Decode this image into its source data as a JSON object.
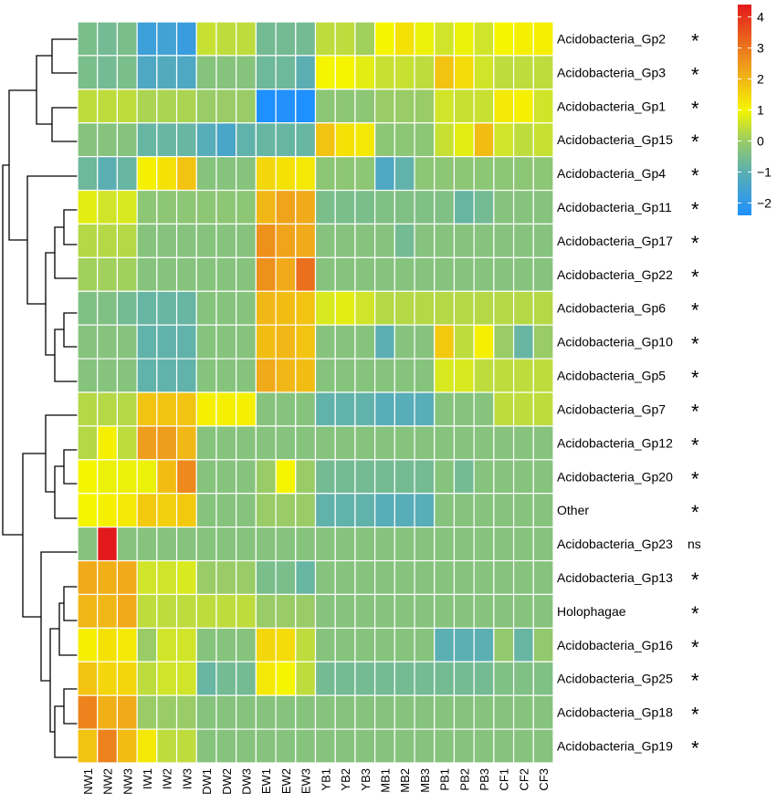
{
  "chart_data": {
    "type": "heatmap",
    "title": "",
    "xlabel": "",
    "ylabel": "",
    "columns": [
      "NW1",
      "NW2",
      "NW3",
      "IW1",
      "IW2",
      "IW3",
      "DW1",
      "DW2",
      "DW3",
      "EW1",
      "EW2",
      "EW3",
      "YB1",
      "YB2",
      "YB3",
      "MB1",
      "MB2",
      "MB3",
      "PB1",
      "PB2",
      "PB3",
      "CF1",
      "CF2",
      "CF3"
    ],
    "rows": [
      {
        "name": "Acidobacteria_Gp2",
        "sig": "*",
        "values": [
          -0.5,
          -0.6,
          -0.5,
          -1.7,
          -1.6,
          -1.8,
          0.5,
          0.4,
          0.4,
          -0.6,
          -0.6,
          -0.6,
          0.4,
          0.4,
          0.1,
          1.0,
          1.3,
          0.9,
          0.6,
          0.9,
          0.6,
          1.0,
          1.1,
          1.1
        ]
      },
      {
        "name": "Acidobacteria_Gp3",
        "sig": "*",
        "values": [
          -0.5,
          -0.6,
          -0.5,
          -1.3,
          -1.2,
          -1.3,
          -0.3,
          -0.3,
          -0.3,
          -0.7,
          -0.7,
          -1.0,
          1.0,
          1.0,
          0.8,
          0.5,
          0.5,
          0.4,
          1.8,
          1.4,
          0.6,
          0.4,
          0.4,
          0.4
        ]
      },
      {
        "name": "Acidobacteria_Gp1",
        "sig": "*",
        "values": [
          0.4,
          0.4,
          0.4,
          0.2,
          0.2,
          0.2,
          0.0,
          0.0,
          0.0,
          -2.4,
          -2.3,
          -2.4,
          -0.2,
          -0.2,
          -0.2,
          0.0,
          0.0,
          0.0,
          0.6,
          0.5,
          0.5,
          1.2,
          1.1,
          0.6
        ]
      },
      {
        "name": "Acidobacteria_Gp15",
        "sig": "*",
        "values": [
          -0.3,
          -0.3,
          -0.3,
          -0.8,
          -0.8,
          -0.8,
          -1.1,
          -1.4,
          -0.9,
          -0.8,
          -0.8,
          -0.8,
          1.8,
          1.3,
          1.2,
          -0.2,
          -0.2,
          -0.2,
          0.5,
          0.8,
          1.9,
          0.6,
          0.4,
          0.5
        ]
      },
      {
        "name": "Acidobacteria_Gp4",
        "sig": "*",
        "values": [
          -0.7,
          -1.0,
          -0.8,
          1.1,
          1.3,
          1.8,
          -0.3,
          -0.3,
          -0.3,
          1.5,
          1.3,
          1.2,
          -0.2,
          -0.2,
          -0.2,
          -1.3,
          -0.9,
          -0.2,
          -0.2,
          -0.2,
          -0.2,
          -0.2,
          -0.2,
          -0.2
        ]
      },
      {
        "name": "Acidobacteria_Gp11",
        "sig": "*",
        "values": [
          0.8,
          0.6,
          0.7,
          -0.2,
          -0.2,
          -0.2,
          -0.2,
          -0.2,
          -0.2,
          2.0,
          2.3,
          2.2,
          -0.5,
          -0.5,
          -0.5,
          -0.4,
          -0.4,
          -0.4,
          -0.4,
          -0.8,
          -0.6,
          -0.3,
          -0.3,
          -0.3
        ]
      },
      {
        "name": "Acidobacteria_Gp17",
        "sig": "*",
        "values": [
          0.3,
          0.3,
          0.3,
          -0.3,
          -0.3,
          -0.3,
          -0.3,
          -0.3,
          -0.3,
          2.6,
          2.3,
          2.2,
          -0.3,
          -0.3,
          -0.3,
          -0.3,
          -0.6,
          -0.3,
          -0.3,
          -0.3,
          -0.3,
          -0.3,
          -0.3,
          -0.3
        ]
      },
      {
        "name": "Acidobacteria_Gp22",
        "sig": "*",
        "values": [
          0.1,
          0.1,
          0.1,
          -0.3,
          -0.3,
          -0.3,
          -0.3,
          -0.3,
          -0.3,
          2.6,
          2.2,
          3.1,
          -0.3,
          -0.3,
          -0.3,
          -0.3,
          -0.3,
          -0.3,
          -0.3,
          -0.3,
          -0.3,
          -0.3,
          -0.3,
          -0.3
        ]
      },
      {
        "name": "Acidobacteria_Gp6",
        "sig": "*",
        "values": [
          -0.4,
          -0.4,
          -0.6,
          -0.8,
          -0.8,
          -0.8,
          -0.3,
          -0.3,
          -0.3,
          2.0,
          1.9,
          1.8,
          0.7,
          0.8,
          0.6,
          0.3,
          0.3,
          0.3,
          0.3,
          0.3,
          0.3,
          0.3,
          0.3,
          0.3
        ]
      },
      {
        "name": "Acidobacteria_Gp10",
        "sig": "*",
        "values": [
          -0.3,
          -0.3,
          -0.3,
          -0.9,
          -0.9,
          -0.9,
          -0.3,
          -0.3,
          -0.3,
          1.9,
          2.0,
          1.8,
          -0.3,
          -0.3,
          -0.3,
          -1.0,
          -0.3,
          -0.3,
          1.7,
          0.4,
          1.1,
          0.0,
          -0.8,
          0.0
        ]
      },
      {
        "name": "Acidobacteria_Gp5",
        "sig": "*",
        "values": [
          -0.3,
          -0.3,
          -0.3,
          -0.9,
          -0.9,
          -0.9,
          -0.3,
          -0.3,
          -0.3,
          2.2,
          2.0,
          1.9,
          -0.3,
          -0.3,
          -0.3,
          -0.3,
          -0.3,
          -0.3,
          0.7,
          0.7,
          0.4,
          0.4,
          0.4,
          0.4
        ]
      },
      {
        "name": "Acidobacteria_Gp7",
        "sig": "*",
        "values": [
          0.3,
          0.3,
          0.3,
          1.8,
          1.8,
          1.8,
          1.1,
          1.1,
          1.1,
          -0.3,
          -0.3,
          -0.3,
          -0.9,
          -0.9,
          -0.9,
          -1.1,
          -1.1,
          -1.1,
          -0.3,
          -0.3,
          -0.3,
          0.4,
          0.4,
          0.4
        ]
      },
      {
        "name": "Acidobacteria_Gp12",
        "sig": "*",
        "values": [
          0.3,
          1.1,
          0.4,
          2.4,
          2.4,
          2.0,
          -0.3,
          -0.3,
          -0.3,
          -0.3,
          -0.3,
          -0.3,
          -0.3,
          -0.3,
          -0.3,
          -0.3,
          -0.3,
          -0.3,
          -0.3,
          -0.3,
          -0.3,
          -0.3,
          -0.3,
          -0.3
        ]
      },
      {
        "name": "Acidobacteria_Gp20",
        "sig": "*",
        "values": [
          1.0,
          0.9,
          0.9,
          0.9,
          1.9,
          2.7,
          -0.3,
          -0.3,
          -0.3,
          0.0,
          1.0,
          0.0,
          -0.6,
          -0.6,
          -0.6,
          -0.6,
          -0.6,
          -0.6,
          -0.3,
          -0.6,
          -0.3,
          -0.3,
          -0.3,
          -0.3
        ]
      },
      {
        "name": "Other",
        "sig": "*",
        "values": [
          1.0,
          1.1,
          1.2,
          1.7,
          1.6,
          1.7,
          -0.3,
          -0.3,
          -0.3,
          0.0,
          0.0,
          0.0,
          -0.9,
          -0.9,
          -0.9,
          -1.1,
          -1.1,
          -1.1,
          -0.3,
          -0.3,
          -0.3,
          -0.3,
          -0.3,
          -0.3
        ]
      },
      {
        "name": "Acidobacteria_Gp23",
        "sig": "ns",
        "values": [
          -0.3,
          4.4,
          -0.3,
          -0.3,
          -0.3,
          -0.3,
          -0.3,
          -0.3,
          -0.3,
          -0.3,
          -0.3,
          -0.3,
          -0.3,
          -0.3,
          -0.3,
          -0.3,
          -0.3,
          -0.3,
          -0.3,
          -0.3,
          -0.3,
          -0.3,
          -0.3,
          -0.3
        ]
      },
      {
        "name": "Acidobacteria_Gp13",
        "sig": "*",
        "values": [
          2.2,
          2.1,
          2.2,
          0.6,
          0.6,
          0.7,
          0.0,
          0.0,
          0.0,
          -0.5,
          -0.5,
          -0.8,
          -0.3,
          -0.3,
          -0.3,
          -0.3,
          -0.3,
          -0.3,
          -0.3,
          -0.3,
          -0.3,
          -0.3,
          -0.3,
          -0.3
        ]
      },
      {
        "name": "Holophagae",
        "sig": "*",
        "values": [
          2.0,
          2.0,
          2.2,
          0.4,
          0.4,
          0.4,
          0.4,
          0.4,
          0.4,
          0.0,
          0.0,
          0.0,
          -0.3,
          -0.3,
          -0.3,
          -0.3,
          -0.3,
          -0.3,
          -0.3,
          -0.3,
          -0.3,
          -0.3,
          -0.3,
          -0.3
        ]
      },
      {
        "name": "Acidobacteria_Gp16",
        "sig": "*",
        "values": [
          1.1,
          1.3,
          1.2,
          0.0,
          0.6,
          0.6,
          -0.3,
          -0.3,
          -0.3,
          1.5,
          1.4,
          0.4,
          -0.3,
          -0.3,
          -0.3,
          -0.3,
          -0.3,
          -0.3,
          -1.0,
          -1.0,
          -1.0,
          -0.1,
          -0.8,
          -0.1
        ]
      },
      {
        "name": "Acidobacteria_Gp25",
        "sig": "*",
        "values": [
          1.8,
          1.5,
          1.5,
          0.4,
          0.6,
          0.6,
          -0.8,
          -0.6,
          -0.6,
          1.2,
          1.0,
          0.4,
          -0.6,
          -0.6,
          -0.6,
          -0.6,
          -0.6,
          -0.6,
          -0.6,
          -0.6,
          -0.6,
          -0.4,
          -0.4,
          -0.4
        ]
      },
      {
        "name": "Acidobacteria_Gp18",
        "sig": "*",
        "values": [
          2.8,
          2.1,
          2.2,
          0.0,
          0.0,
          0.0,
          -0.3,
          -0.3,
          -0.3,
          -0.3,
          -0.3,
          -0.3,
          -0.3,
          -0.3,
          -0.3,
          -0.3,
          -0.3,
          -0.3,
          -0.3,
          -0.3,
          -0.3,
          -0.3,
          -0.3,
          -0.3
        ]
      },
      {
        "name": "Acidobacteria_Gp19",
        "sig": "*",
        "values": [
          1.8,
          2.8,
          1.9,
          1.2,
          0.4,
          0.4,
          -0.3,
          -0.3,
          -0.3,
          -0.3,
          -0.3,
          -0.3,
          -0.3,
          -0.3,
          -0.3,
          -0.3,
          -0.3,
          -0.3,
          -0.3,
          -0.3,
          -0.3,
          -0.3,
          -0.3,
          -0.3
        ]
      }
    ],
    "color_scale": {
      "min": -2.4,
      "max": 4.4,
      "stops": [
        {
          "value": -2.4,
          "color": "#1e90ff"
        },
        {
          "value": -1.0,
          "color": "#5bafb2"
        },
        {
          "value": 0.0,
          "color": "#99cc66"
        },
        {
          "value": 1.0,
          "color": "#f5f500"
        },
        {
          "value": 2.3,
          "color": "#f0a41c"
        },
        {
          "value": 4.4,
          "color": "#e31a1c"
        }
      ]
    },
    "legend": {
      "ticks": [
        "4",
        "3",
        "2",
        "1",
        "0",
        "−1",
        "−2"
      ],
      "tick_values": [
        4,
        3,
        2,
        1,
        0,
        -1,
        -2
      ],
      "placement": "top-right"
    },
    "dendrogram": "row"
  }
}
